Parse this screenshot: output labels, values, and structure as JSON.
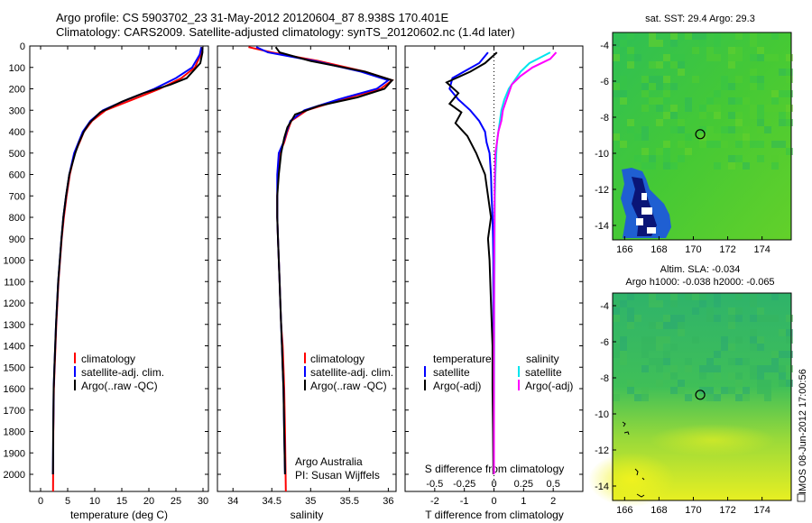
{
  "header": {
    "line1": "Argo profile: CS 5903702_23 31-May-2012 20120604_87 8.938S 170.401E",
    "line2": "Climatology: CARS2009. Satellite-adjusted climatology: synTS_20120602.nc (1.4d later)"
  },
  "side_label": "IMOS 08-Jun-2012 17:00:56",
  "colors": {
    "red": "#ff0000",
    "blue": "#0000ff",
    "black": "#000000",
    "cyan": "#00e5ee",
    "magenta": "#ff00ff"
  },
  "chart_data": [
    {
      "id": "temperature",
      "type": "line",
      "xlabel": "temperature (deg C)",
      "xlim": [
        -2,
        31
      ],
      "xticks": [
        0,
        5,
        10,
        15,
        20,
        25,
        30
      ],
      "ylim": [
        2080,
        0
      ],
      "yticks": [
        0,
        100,
        200,
        300,
        400,
        500,
        600,
        700,
        800,
        900,
        1000,
        1100,
        1200,
        1300,
        1400,
        1500,
        1600,
        1700,
        1800,
        1900,
        2000
      ],
      "legend": [
        "climatology",
        "satellite-adj. clim.",
        "Argo(..raw -QC)"
      ],
      "series": [
        {
          "name": "climatology",
          "color": "red",
          "x": [
            29.8,
            29.6,
            28.5,
            26,
            22,
            17,
            12,
            9.5,
            8,
            7.2,
            6.3,
            5.4,
            4.8,
            4.3,
            3.9,
            3.6,
            3.3,
            3.1,
            2.9,
            2.75,
            2.6,
            2.45,
            2.35,
            2.3
          ],
          "y": [
            5,
            40,
            100,
            150,
            200,
            250,
            300,
            350,
            400,
            450,
            500,
            600,
            700,
            800,
            900,
            1000,
            1100,
            1200,
            1300,
            1400,
            1500,
            1600,
            1800,
            2080
          ]
        },
        {
          "name": "satellite-adj. clim.",
          "color": "blue",
          "x": [
            29.7,
            29.4,
            28,
            25,
            21,
            16,
            11.5,
            9.2,
            7.8,
            7,
            6.2,
            5.3,
            4.7,
            4.2,
            3.85,
            3.55,
            3.25,
            3.05,
            2.85,
            2.7,
            2.55,
            2.42,
            2.33,
            2.28
          ],
          "y": [
            5,
            40,
            100,
            150,
            200,
            250,
            300,
            350,
            400,
            450,
            500,
            600,
            700,
            800,
            900,
            1000,
            1100,
            1200,
            1300,
            1400,
            1500,
            1600,
            1800,
            2000
          ]
        },
        {
          "name": "Argo(..raw -QC)",
          "color": "black",
          "x": [
            29.9,
            29.9,
            29.5,
            27,
            24,
            19,
            15,
            11,
            9,
            8,
            7.1,
            6.4,
            5.3,
            4.7,
            4.2,
            3.85,
            3.55,
            3.25,
            3.05,
            2.85,
            2.7,
            2.55,
            2.42,
            2.33,
            2.28
          ],
          "y": [
            5,
            30,
            80,
            150,
            180,
            220,
            260,
            310,
            360,
            400,
            450,
            500,
            600,
            700,
            800,
            900,
            1000,
            1100,
            1200,
            1300,
            1400,
            1500,
            1600,
            1800,
            2000
          ]
        }
      ]
    },
    {
      "id": "salinity",
      "type": "line",
      "xlabel": "salinity",
      "xlim": [
        33.8,
        36.1
      ],
      "xticks": [
        34,
        34.5,
        35,
        35.5,
        36
      ],
      "ylim": [
        2080,
        0
      ],
      "legend": [
        "climatology",
        "satellite-adj. clim.",
        "Argo(..raw -QC)"
      ],
      "annotations": [
        "Argo Australia",
        "PI: Susan Wijffels"
      ],
      "series": [
        {
          "name": "climatology",
          "color": "red",
          "x": [
            34.2,
            34.5,
            35.1,
            35.7,
            36.05,
            35.9,
            35.4,
            34.95,
            34.75,
            34.7,
            34.66,
            34.6,
            34.58,
            34.57,
            34.57,
            34.58,
            34.59,
            34.6,
            34.61,
            34.62,
            34.64,
            34.65,
            34.66,
            34.67,
            34.68
          ],
          "y": [
            5,
            30,
            70,
            120,
            160,
            200,
            250,
            300,
            350,
            400,
            450,
            500,
            600,
            700,
            800,
            900,
            1000,
            1100,
            1200,
            1300,
            1400,
            1500,
            1600,
            1800,
            2080
          ]
        },
        {
          "name": "satellite-adj. clim.",
          "color": "blue",
          "x": [
            34.3,
            34.45,
            35.05,
            35.65,
            36,
            35.85,
            35.35,
            34.92,
            34.74,
            34.69,
            34.65,
            34.59,
            34.57,
            34.57,
            34.57,
            34.58,
            34.59,
            34.6,
            34.61,
            34.62,
            34.63,
            34.64,
            34.65,
            34.66,
            34.67
          ],
          "y": [
            5,
            30,
            70,
            120,
            160,
            200,
            250,
            300,
            350,
            400,
            450,
            500,
            600,
            700,
            800,
            900,
            1000,
            1100,
            1200,
            1300,
            1400,
            1500,
            1600,
            1800,
            2000
          ]
        },
        {
          "name": "Argo(..raw -QC)",
          "color": "black",
          "x": [
            34.55,
            34.6,
            35,
            35.7,
            36.05,
            35.95,
            35.6,
            35.1,
            34.8,
            34.7,
            34.66,
            34.62,
            34.59,
            34.57,
            34.57,
            34.58,
            34.59,
            34.6,
            34.61,
            34.62,
            34.63,
            34.64,
            34.65,
            34.66,
            34.67
          ],
          "y": [
            5,
            30,
            70,
            120,
            160,
            200,
            240,
            280,
            320,
            380,
            430,
            500,
            600,
            700,
            800,
            900,
            1000,
            1100,
            1200,
            1300,
            1400,
            1500,
            1600,
            1800,
            2000
          ]
        }
      ]
    },
    {
      "id": "difference",
      "type": "line",
      "xlabel": "T difference from climatology",
      "xlabel_top": "S difference from climatology",
      "xlim": [
        -3,
        3
      ],
      "xticks": [
        -2,
        -1,
        0,
        1,
        2
      ],
      "xticks_top": [
        "-0.5",
        "-0.25",
        "0",
        "0.25",
        "0.5"
      ],
      "ylim": [
        2080,
        0
      ],
      "legend_temperature": {
        "title": "temperature",
        "items": [
          "satellite",
          "Argo(-adj)"
        ]
      },
      "legend_salinity": {
        "title": "salinity",
        "items": [
          "satellite",
          "Argo(-adj)"
        ]
      },
      "series": [
        {
          "name": "satellite",
          "group": "temperature",
          "color": "blue",
          "x": [
            -0.2,
            -0.5,
            -1.4,
            -1.5,
            -1.2,
            -0.8,
            -0.5,
            -0.3,
            -0.25,
            -0.15,
            -0.1,
            -0.08,
            -0.05,
            -0.03,
            -0.02,
            -0.02,
            -0.01,
            -0.01,
            0,
            0
          ],
          "y": [
            30,
            80,
            150,
            200,
            250,
            300,
            350,
            400,
            450,
            500,
            600,
            700,
            800,
            900,
            1000,
            1200,
            1400,
            1600,
            1800,
            2000
          ]
        },
        {
          "name": "Argo(-adj)",
          "group": "temperature",
          "color": "black",
          "x": [
            0.1,
            -0.3,
            -0.8,
            -1.6,
            -1.2,
            -1.5,
            -1.1,
            -1.3,
            -0.9,
            -0.6,
            -0.3,
            -0.2,
            -0.1,
            -0.2,
            -0.15,
            -0.1,
            -0.05,
            -0.05,
            -0.03,
            -0.02,
            -0.02
          ],
          "y": [
            30,
            80,
            120,
            170,
            220,
            270,
            310,
            360,
            420,
            500,
            600,
            700,
            800,
            900,
            1000,
            1200,
            1400,
            1600,
            1800,
            1950,
            2000
          ]
        },
        {
          "name": "satellite",
          "group": "salinity",
          "color": "cyan",
          "x": [
            1.9,
            1.2,
            0.9,
            0.7,
            0.5,
            0.35,
            0.25,
            0.2,
            0.15,
            0.1,
            0.08,
            0.05,
            0.03,
            0.02,
            0.02,
            0.01,
            0.01,
            0,
            0
          ],
          "y": [
            30,
            80,
            120,
            160,
            200,
            250,
            300,
            350,
            400,
            450,
            500,
            600,
            700,
            800,
            1000,
            1200,
            1400,
            1800,
            2000
          ]
        },
        {
          "name": "Argo(-adj)",
          "group": "salinity",
          "color": "magenta",
          "x": [
            2.1,
            1.9,
            1.3,
            0.9,
            0.6,
            0.5,
            0.4,
            0.3,
            0.25,
            0.15,
            0.1,
            0.05,
            0.03,
            0.02,
            0.02,
            0.01,
            0,
            0
          ],
          "y": [
            30,
            60,
            100,
            140,
            180,
            220,
            260,
            300,
            350,
            400,
            450,
            500,
            600,
            700,
            800,
            1000,
            1500,
            2000
          ]
        }
      ]
    },
    {
      "id": "sst_map",
      "type": "heatmap",
      "title": "sat. SST: 29.4  Argo: 29.3",
      "xlim": [
        165.3,
        175.7
      ],
      "ylim": [
        -14.8,
        -3.3
      ],
      "xticks": [
        166,
        168,
        170,
        172,
        174
      ],
      "yticks": [
        -4,
        -6,
        -8,
        -10,
        -12,
        -14
      ],
      "marker": {
        "lon": 170.4,
        "lat": -8.94
      }
    },
    {
      "id": "sla_map",
      "type": "heatmap",
      "title": "Altim. SLA: -0.034",
      "subtitle": "Argo h1000: -0.038  h2000: -0.065",
      "xlim": [
        165.3,
        175.7
      ],
      "ylim": [
        -14.8,
        -3.3
      ],
      "xticks": [
        166,
        168,
        170,
        172,
        174
      ],
      "yticks": [
        -4,
        -6,
        -8,
        -10,
        -12,
        -14
      ],
      "marker": {
        "lon": 170.4,
        "lat": -8.94
      }
    }
  ]
}
